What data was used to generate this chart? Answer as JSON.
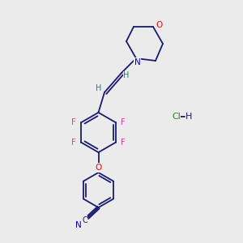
{
  "background_color": "#ebebeb",
  "bond_color": "#1a1a6e",
  "atom_colors": {
    "F": "#e040a0",
    "O": "#ff0000",
    "N": "#0000cc",
    "H": "#008888",
    "Cl": "#228b22",
    "default": "#1a1a6e"
  }
}
